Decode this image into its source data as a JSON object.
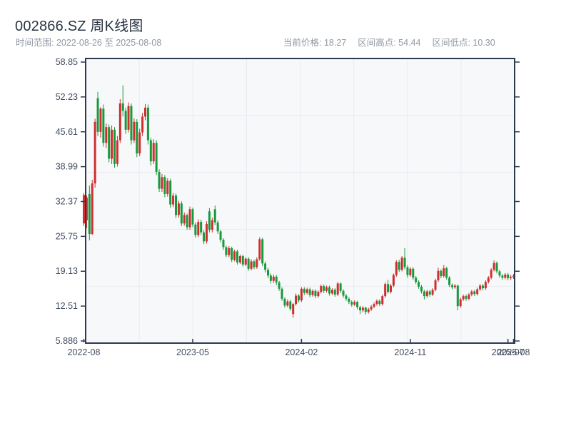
{
  "header": {
    "title": "002866.SZ 周K线图",
    "subtitle": "时间范围: 2022-08-26 至 2025-08-08",
    "stats": [
      "当前价格: 18.27",
      "区间高点: 54.44",
      "区间低点: 10.30"
    ]
  },
  "chart_data": {
    "type": "candlestick",
    "title": "002866.SZ 周K线图",
    "frequency": "weekly",
    "date_range": {
      "start": "2022-08-26",
      "end": "2025-08-08"
    },
    "current_price": 18.27,
    "range_high": 54.44,
    "range_low": 10.3,
    "grid": true,
    "colors": {
      "up": "#cf2e2e",
      "down": "#179a3c"
    },
    "y_axis": {
      "tick_labels": [
        "58.85",
        "52.23",
        "45.61",
        "38.99",
        "32.37",
        "25.75",
        "19.13",
        "12.51",
        "5.886"
      ],
      "tick_values": [
        58.85,
        52.23,
        45.61,
        38.99,
        32.37,
        25.75,
        19.13,
        12.51,
        5.886
      ],
      "range": [
        5.48,
        59.53
      ]
    },
    "x_axis": {
      "ticks": [
        {
          "label": "2022-08",
          "week": 0
        },
        {
          "label": "2023-05",
          "week": 39
        },
        {
          "label": "2024-02",
          "week": 78
        },
        {
          "label": "2024-11",
          "week": 117
        },
        {
          "label": "2025-07",
          "week": 152
        },
        {
          "label": "2025-08",
          "week": 154
        }
      ]
    },
    "ohlc": [
      [
        28.2,
        34.0,
        27.7,
        33.6
      ],
      [
        28.8,
        33.5,
        27.3,
        33.1
      ],
      [
        33.8,
        35.4,
        25.0,
        26.2
      ],
      [
        26.2,
        36.5,
        26.0,
        35.8
      ],
      [
        35.8,
        48.1,
        35.0,
        47.5
      ],
      [
        52.0,
        53.2,
        44.8,
        45.6
      ],
      [
        45.6,
        50.3,
        44.5,
        50.0
      ],
      [
        50.0,
        50.8,
        42.8,
        43.5
      ],
      [
        43.5,
        47.2,
        42.5,
        46.5
      ],
      [
        46.5,
        47.0,
        39.8,
        40.5
      ],
      [
        40.5,
        46.8,
        39.5,
        46.0
      ],
      [
        46.0,
        46.5,
        38.8,
        39.5
      ],
      [
        39.5,
        44.8,
        39.0,
        44.0
      ],
      [
        44.0,
        51.8,
        43.5,
        51.0
      ],
      [
        51.0,
        54.44,
        48.5,
        49.6
      ],
      [
        49.6,
        50.2,
        45.2,
        46.0
      ],
      [
        46.0,
        51.2,
        45.5,
        50.5
      ],
      [
        50.5,
        51.0,
        43.2,
        44.0
      ],
      [
        44.0,
        48.2,
        43.5,
        47.5
      ],
      [
        47.5,
        48.0,
        40.8,
        41.5
      ],
      [
        41.5,
        46.2,
        41.0,
        45.5
      ],
      [
        45.5,
        49.2,
        44.8,
        48.5
      ],
      [
        48.5,
        50.9,
        47.8,
        50.2
      ],
      [
        50.2,
        50.8,
        43.2,
        44.0
      ],
      [
        44.0,
        44.5,
        39.2,
        40.0
      ],
      [
        40.0,
        44.2,
        39.5,
        43.5
      ],
      [
        43.5,
        44.0,
        37.4,
        38.0
      ],
      [
        38.0,
        38.5,
        34.2,
        34.8
      ],
      [
        34.8,
        37.6,
        34.2,
        37.0
      ],
      [
        37.0,
        37.4,
        33.2,
        33.8
      ],
      [
        33.8,
        36.8,
        33.3,
        36.3
      ],
      [
        36.3,
        36.7,
        31.2,
        31.8
      ],
      [
        31.8,
        34.0,
        31.3,
        33.5
      ],
      [
        33.5,
        33.9,
        29.2,
        29.8
      ],
      [
        29.8,
        32.5,
        29.3,
        32.0
      ],
      [
        32.0,
        32.4,
        27.7,
        28.2
      ],
      [
        28.2,
        30.3,
        27.8,
        29.8
      ],
      [
        29.8,
        30.1,
        27.0,
        27.5
      ],
      [
        27.5,
        31.4,
        27.0,
        30.9
      ],
      [
        30.9,
        31.2,
        27.5,
        28.0
      ],
      [
        28.0,
        28.4,
        25.5,
        26.0
      ],
      [
        26.0,
        29.0,
        25.6,
        28.5
      ],
      [
        28.5,
        28.9,
        26.0,
        26.5
      ],
      [
        26.5,
        26.9,
        24.3,
        24.8
      ],
      [
        24.8,
        28.6,
        24.4,
        28.1
      ],
      [
        30.5,
        31.1,
        26.5,
        27.0
      ],
      [
        27.0,
        29.3,
        26.5,
        28.8
      ],
      [
        30.9,
        31.6,
        27.9,
        28.4
      ],
      [
        28.4,
        28.8,
        26.2,
        26.7
      ],
      [
        26.7,
        27.0,
        24.6,
        25.1
      ],
      [
        25.1,
        25.4,
        23.2,
        23.7
      ],
      [
        23.7,
        24.0,
        21.8,
        22.2
      ],
      [
        22.2,
        23.9,
        21.8,
        23.5
      ],
      [
        23.5,
        23.8,
        20.9,
        21.3
      ],
      [
        21.3,
        23.2,
        21.0,
        22.9
      ],
      [
        22.9,
        23.2,
        20.4,
        20.8
      ],
      [
        20.8,
        22.3,
        20.5,
        22.0
      ],
      [
        22.0,
        22.3,
        20.0,
        20.4
      ],
      [
        20.4,
        21.8,
        20.1,
        21.5
      ],
      [
        21.5,
        21.8,
        19.2,
        19.6
      ],
      [
        19.6,
        21.4,
        19.3,
        21.0
      ],
      [
        21.0,
        21.3,
        19.5,
        19.9
      ],
      [
        19.9,
        21.8,
        19.6,
        21.4
      ],
      [
        21.4,
        25.6,
        21.1,
        25.2
      ],
      [
        25.2,
        25.5,
        20.1,
        20.6
      ],
      [
        20.6,
        21.0,
        18.9,
        19.4
      ],
      [
        19.4,
        19.8,
        17.8,
        18.3
      ],
      [
        18.3,
        18.7,
        16.8,
        17.3
      ],
      [
        17.3,
        18.5,
        16.9,
        18.1
      ],
      [
        18.1,
        18.4,
        16.5,
        17.0
      ],
      [
        17.0,
        17.3,
        15.4,
        15.8
      ],
      [
        15.8,
        16.1,
        13.5,
        13.9
      ],
      [
        13.9,
        14.2,
        12.2,
        12.6
      ],
      [
        12.6,
        13.8,
        12.3,
        13.4
      ],
      [
        13.4,
        13.7,
        11.6,
        12.0
      ],
      [
        11.0,
        13.1,
        10.3,
        12.9
      ],
      [
        12.9,
        14.9,
        12.6,
        14.5
      ],
      [
        14.5,
        14.8,
        13.2,
        13.6
      ],
      [
        13.6,
        16.1,
        13.3,
        15.8
      ],
      [
        15.8,
        16.1,
        14.6,
        15.0
      ],
      [
        15.0,
        16.0,
        14.7,
        15.7
      ],
      [
        15.7,
        16.0,
        14.2,
        14.6
      ],
      [
        14.6,
        15.7,
        14.3,
        15.4
      ],
      [
        15.4,
        15.7,
        14.0,
        14.4
      ],
      [
        14.4,
        15.5,
        14.1,
        15.2
      ],
      [
        15.2,
        16.6,
        14.9,
        16.3
      ],
      [
        16.3,
        16.6,
        15.0,
        15.4
      ],
      [
        15.4,
        16.4,
        15.1,
        16.1
      ],
      [
        16.1,
        16.4,
        14.5,
        14.9
      ],
      [
        14.9,
        15.9,
        14.6,
        15.6
      ],
      [
        15.6,
        15.9,
        14.3,
        14.7
      ],
      [
        14.7,
        17.1,
        14.4,
        16.8
      ],
      [
        16.8,
        17.0,
        15.0,
        15.4
      ],
      [
        15.4,
        15.7,
        14.1,
        14.5
      ],
      [
        14.5,
        14.8,
        13.5,
        13.9
      ],
      [
        13.9,
        14.2,
        12.9,
        13.3
      ],
      [
        13.3,
        13.6,
        12.4,
        12.8
      ],
      [
        12.8,
        13.6,
        12.5,
        13.3
      ],
      [
        13.3,
        13.5,
        11.9,
        12.3
      ],
      [
        12.3,
        12.6,
        11.0,
        11.7
      ],
      [
        11.7,
        12.5,
        11.3,
        12.2
      ],
      [
        12.2,
        12.4,
        10.9,
        11.4
      ],
      [
        11.4,
        12.2,
        11.1,
        11.9
      ],
      [
        11.9,
        12.7,
        11.6,
        12.4
      ],
      [
        12.4,
        13.2,
        12.1,
        12.9
      ],
      [
        12.9,
        13.8,
        12.6,
        13.5
      ],
      [
        13.5,
        13.8,
        12.5,
        12.9
      ],
      [
        12.9,
        14.7,
        12.6,
        14.4
      ],
      [
        14.4,
        17.0,
        14.1,
        16.7
      ],
      [
        16.7,
        17.5,
        14.9,
        15.2
      ],
      [
        15.2,
        16.7,
        14.9,
        16.4
      ],
      [
        16.4,
        18.7,
        16.1,
        18.4
      ],
      [
        18.4,
        21.2,
        18.1,
        20.9
      ],
      [
        20.9,
        21.3,
        19.0,
        19.4
      ],
      [
        19.4,
        22.0,
        19.1,
        21.7
      ],
      [
        21.7,
        23.5,
        19.5,
        19.9
      ],
      [
        19.9,
        20.3,
        17.9,
        18.4
      ],
      [
        18.4,
        19.9,
        18.1,
        19.6
      ],
      [
        19.6,
        19.9,
        17.5,
        17.9
      ],
      [
        17.9,
        18.2,
        16.7,
        17.1
      ],
      [
        17.1,
        17.4,
        15.8,
        16.2
      ],
      [
        16.2,
        16.5,
        14.9,
        15.3
      ],
      [
        15.3,
        15.6,
        13.8,
        14.4
      ],
      [
        14.4,
        15.6,
        14.1,
        15.3
      ],
      [
        15.3,
        15.6,
        14.3,
        14.7
      ],
      [
        14.7,
        15.9,
        14.4,
        15.6
      ],
      [
        15.6,
        17.7,
        15.3,
        17.4
      ],
      [
        17.4,
        19.8,
        17.1,
        19.2
      ],
      [
        19.2,
        19.5,
        17.8,
        18.2
      ],
      [
        18.2,
        20.3,
        17.9,
        19.7
      ],
      [
        19.7,
        20.0,
        17.5,
        17.9
      ],
      [
        17.9,
        18.2,
        16.1,
        16.5
      ],
      [
        16.5,
        16.8,
        15.7,
        16.1
      ],
      [
        16.1,
        16.7,
        15.8,
        16.4
      ],
      [
        16.4,
        16.6,
        11.7,
        12.5
      ],
      [
        12.5,
        14.1,
        12.2,
        13.8
      ],
      [
        13.8,
        14.7,
        13.5,
        14.4
      ],
      [
        14.4,
        14.7,
        13.5,
        13.9
      ],
      [
        13.9,
        15.0,
        13.6,
        14.7
      ],
      [
        14.7,
        15.6,
        14.4,
        15.3
      ],
      [
        15.3,
        15.6,
        14.4,
        14.8
      ],
      [
        14.8,
        16.0,
        14.5,
        15.7
      ],
      [
        15.7,
        16.7,
        15.4,
        16.4
      ],
      [
        16.4,
        16.7,
        15.5,
        15.9
      ],
      [
        15.9,
        17.4,
        15.6,
        17.1
      ],
      [
        17.1,
        18.2,
        16.8,
        17.9
      ],
      [
        17.9,
        19.7,
        17.6,
        19.4
      ],
      [
        19.4,
        21.2,
        19.1,
        20.7
      ],
      [
        20.7,
        21.0,
        18.7,
        19.1
      ],
      [
        19.1,
        19.4,
        17.9,
        18.3
      ],
      [
        18.3,
        18.6,
        17.5,
        17.9
      ],
      [
        17.9,
        18.8,
        17.6,
        18.5
      ],
      [
        18.5,
        18.8,
        17.4,
        17.8
      ],
      [
        17.8,
        18.4,
        17.5,
        18.0
      ],
      [
        18.0,
        18.6,
        17.7,
        18.27
      ]
    ]
  }
}
